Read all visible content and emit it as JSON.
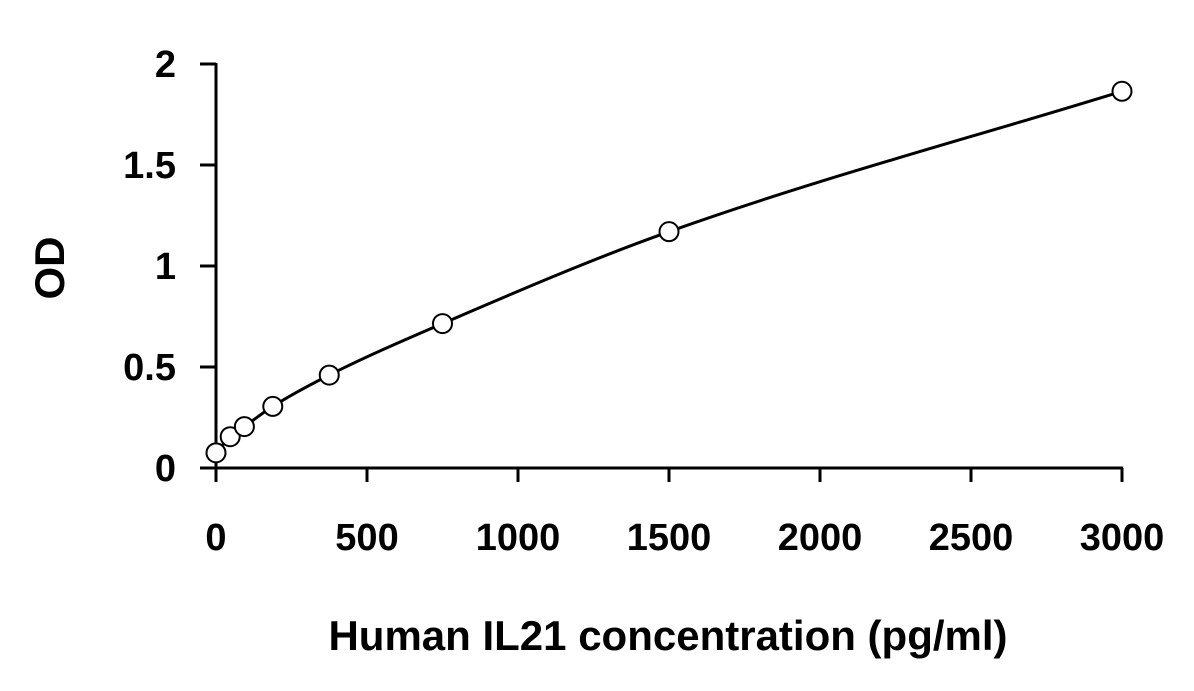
{
  "chart_data": {
    "type": "scatter",
    "title": "",
    "xlabel": "Human IL21 concentration (pg/ml)",
    "ylabel": "OD",
    "xlim": [
      0,
      3000
    ],
    "ylim": [
      0,
      2
    ],
    "x_ticks": [
      0,
      500,
      1000,
      1500,
      2000,
      2500,
      3000
    ],
    "y_ticks": [
      0,
      0.5,
      1,
      1.5,
      2
    ],
    "x_tick_labels": [
      "0",
      "500",
      "1000",
      "1500",
      "2000",
      "2500",
      "3000"
    ],
    "y_tick_labels": [
      "0",
      "0.5",
      "1",
      "1.5",
      "2"
    ],
    "grid": false,
    "legend": "none",
    "series": [
      {
        "marker": "open-circle",
        "x": [
          0,
          47,
          94,
          188,
          375,
          750,
          1500,
          3000
        ],
        "y": [
          0.075,
          0.155,
          0.205,
          0.305,
          0.46,
          0.715,
          1.17,
          1.865
        ]
      }
    ],
    "fit_curve": {
      "style": "solid",
      "color": "#000000"
    }
  }
}
